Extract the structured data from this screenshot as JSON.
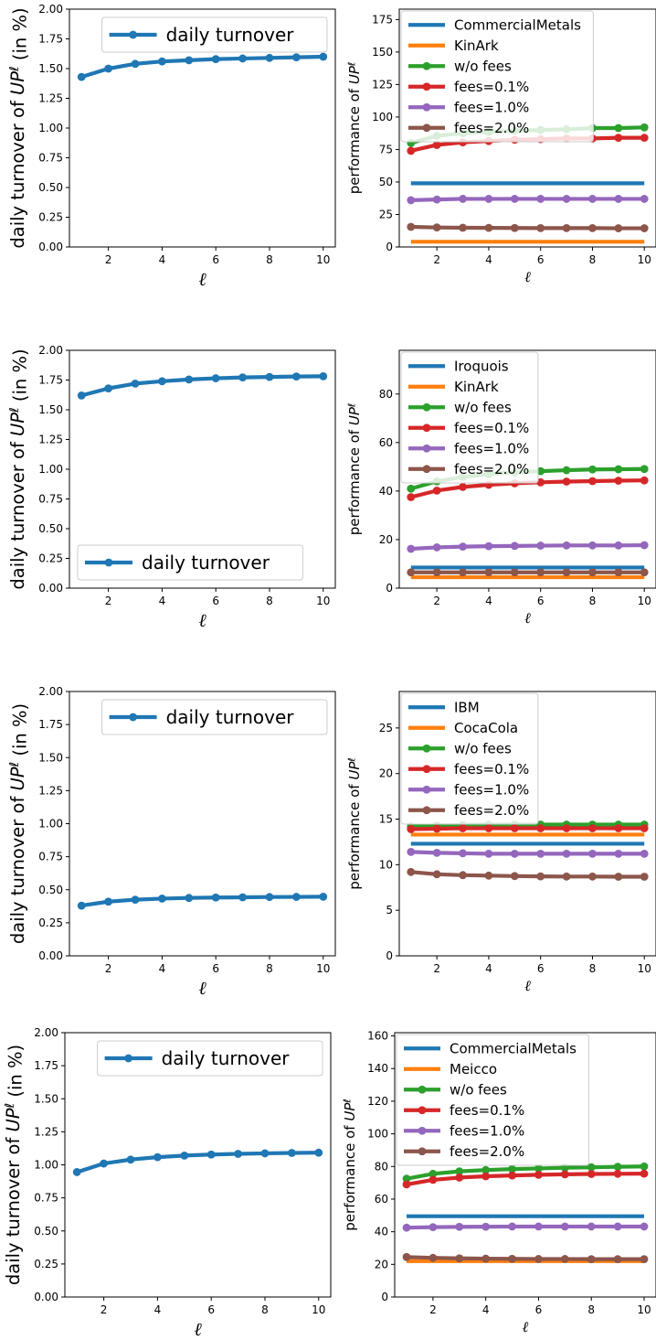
{
  "chart_data": [
    {
      "id": "row1-left",
      "type": "line",
      "ylabel_pre": "daily turnover of ",
      "ylabel_up": "UP",
      "ylabel_sup": "ℓ",
      "ylabel_post": " (in %)",
      "xlabel": "ℓ",
      "x": [
        1,
        2,
        3,
        4,
        5,
        6,
        7,
        8,
        9,
        10
      ],
      "xticks": [
        2,
        4,
        6,
        8,
        10
      ],
      "xticklabels": [
        "2",
        "4",
        "6",
        "8",
        "10"
      ],
      "ylim": [
        0,
        2.0
      ],
      "yticks": [
        0,
        0.25,
        0.5,
        0.75,
        1.0,
        1.25,
        1.5,
        1.75,
        2.0
      ],
      "yticklabels": [
        "0.00",
        "0.25",
        "0.50",
        "0.75",
        "1.00",
        "1.25",
        "1.50",
        "1.75",
        "2.00"
      ],
      "legend_position": "top-right",
      "series": [
        {
          "name": "daily turnover",
          "color": "#1f77b4",
          "marker": true,
          "values": [
            1.43,
            1.5,
            1.54,
            1.56,
            1.57,
            1.58,
            1.585,
            1.59,
            1.595,
            1.6
          ]
        }
      ]
    },
    {
      "id": "row1-right",
      "type": "line",
      "ylabel_pre": "performance of ",
      "ylabel_up": "UP",
      "ylabel_sup": "ℓ",
      "ylabel_post": "",
      "xlabel": "ℓ",
      "x": [
        1,
        2,
        3,
        4,
        5,
        6,
        7,
        8,
        9,
        10
      ],
      "xticks": [
        2,
        4,
        6,
        8,
        10
      ],
      "xticklabels": [
        "2",
        "4",
        "6",
        "8",
        "10"
      ],
      "ylim": [
        0,
        183
      ],
      "yticks": [
        0,
        25,
        50,
        75,
        100,
        125,
        150,
        175
      ],
      "yticklabels": [
        "0",
        "25",
        "50",
        "75",
        "100",
        "125",
        "150",
        "175"
      ],
      "legend_position": "top-left",
      "series": [
        {
          "name": "CommercialMetals",
          "color": "#1f77b4",
          "marker": false,
          "values": [
            49,
            49,
            49,
            49,
            49,
            49,
            49,
            49,
            49,
            49
          ]
        },
        {
          "name": "KinArk",
          "color": "#ff7f0e",
          "marker": false,
          "values": [
            4,
            4,
            4,
            4,
            4,
            4,
            4,
            4,
            4,
            4
          ]
        },
        {
          "name": "w/o fees",
          "color": "#2ca02c",
          "marker": true,
          "values": [
            80,
            85.5,
            87.5,
            88.5,
            89.5,
            90,
            90.5,
            91.5,
            91.5,
            92
          ]
        },
        {
          "name": "fees=0.1%",
          "color": "#d62728",
          "marker": true,
          "values": [
            74,
            78.5,
            80.5,
            81.5,
            82.5,
            83,
            83.5,
            83.5,
            84,
            84
          ]
        },
        {
          "name": "fees=1.0%",
          "color": "#9467bd",
          "marker": true,
          "values": [
            36,
            36.5,
            37,
            37,
            37,
            37,
            37,
            37,
            37,
            37
          ]
        },
        {
          "name": "fees=2.0%",
          "color": "#8c564b",
          "marker": true,
          "values": [
            15.5,
            15,
            14.8,
            14.7,
            14.6,
            14.5,
            14.5,
            14.5,
            14.4,
            14.4
          ]
        }
      ]
    },
    {
      "id": "row2-left",
      "type": "line",
      "ylabel_pre": "daily turnover of ",
      "ylabel_up": "UP",
      "ylabel_sup": "ℓ",
      "ylabel_post": " (in %)",
      "xlabel": "ℓ",
      "x": [
        1,
        2,
        3,
        4,
        5,
        6,
        7,
        8,
        9,
        10
      ],
      "xticks": [
        2,
        4,
        6,
        8,
        10
      ],
      "xticklabels": [
        "2",
        "4",
        "6",
        "8",
        "10"
      ],
      "ylim": [
        0,
        2.0
      ],
      "yticks": [
        0,
        0.25,
        0.5,
        0.75,
        1.0,
        1.25,
        1.5,
        1.75,
        2.0
      ],
      "yticklabels": [
        "0.00",
        "0.25",
        "0.50",
        "0.75",
        "1.00",
        "1.25",
        "1.50",
        "1.75",
        "2.00"
      ],
      "legend_position": "bottom-left",
      "series": [
        {
          "name": "daily turnover",
          "color": "#1f77b4",
          "marker": true,
          "values": [
            1.62,
            1.68,
            1.72,
            1.74,
            1.755,
            1.765,
            1.772,
            1.776,
            1.78,
            1.782
          ]
        }
      ]
    },
    {
      "id": "row2-right",
      "type": "line",
      "ylabel_pre": "performance of ",
      "ylabel_up": "UP",
      "ylabel_sup": "ℓ",
      "ylabel_post": "",
      "xlabel": "ℓ",
      "x": [
        1,
        2,
        3,
        4,
        5,
        6,
        7,
        8,
        9,
        10
      ],
      "xticks": [
        2,
        4,
        6,
        8,
        10
      ],
      "xticklabels": [
        "2",
        "4",
        "6",
        "8",
        "10"
      ],
      "ylim": [
        0,
        98
      ],
      "yticks": [
        0,
        20,
        40,
        60,
        80
      ],
      "yticklabels": [
        "0",
        "20",
        "40",
        "60",
        "80"
      ],
      "legend_position": "top-left",
      "series": [
        {
          "name": "Iroquois",
          "color": "#1f77b4",
          "marker": false,
          "values": [
            8.5,
            8.5,
            8.5,
            8.5,
            8.5,
            8.5,
            8.5,
            8.5,
            8.5,
            8.5
          ]
        },
        {
          "name": "KinArk",
          "color": "#ff7f0e",
          "marker": false,
          "values": [
            4.5,
            4.5,
            4.5,
            4.5,
            4.5,
            4.5,
            4.5,
            4.5,
            4.5,
            4.5
          ]
        },
        {
          "name": "w/o fees",
          "color": "#2ca02c",
          "marker": true,
          "values": [
            41,
            44,
            45.8,
            47,
            47.7,
            48.2,
            48.6,
            48.9,
            49,
            49.1
          ]
        },
        {
          "name": "fees=0.1%",
          "color": "#d62728",
          "marker": true,
          "values": [
            37.5,
            40.2,
            41.7,
            42.6,
            43.2,
            43.6,
            43.9,
            44.1,
            44.3,
            44.4
          ]
        },
        {
          "name": "fees=1.0%",
          "color": "#9467bd",
          "marker": true,
          "values": [
            16.2,
            16.8,
            17.1,
            17.3,
            17.4,
            17.5,
            17.6,
            17.6,
            17.6,
            17.7
          ]
        },
        {
          "name": "fees=2.0%",
          "color": "#8c564b",
          "marker": true,
          "values": [
            6.5,
            6.5,
            6.5,
            6.5,
            6.5,
            6.5,
            6.5,
            6.5,
            6.5,
            6.5
          ]
        }
      ]
    },
    {
      "id": "row3-left",
      "type": "line",
      "ylabel_pre": "daily turnover of ",
      "ylabel_up": "UP",
      "ylabel_sup": "ℓ",
      "ylabel_post": " (in %)",
      "xlabel": "ℓ",
      "x": [
        1,
        2,
        3,
        4,
        5,
        6,
        7,
        8,
        9,
        10
      ],
      "xticks": [
        2,
        4,
        6,
        8,
        10
      ],
      "xticklabels": [
        "2",
        "4",
        "6",
        "8",
        "10"
      ],
      "ylim": [
        0,
        2.0
      ],
      "yticks": [
        0,
        0.25,
        0.5,
        0.75,
        1.0,
        1.25,
        1.5,
        1.75,
        2.0
      ],
      "yticklabels": [
        "0.00",
        "0.25",
        "0.50",
        "0.75",
        "1.00",
        "1.25",
        "1.50",
        "1.75",
        "2.00"
      ],
      "legend_position": "top-right",
      "series": [
        {
          "name": "daily turnover",
          "color": "#1f77b4",
          "marker": true,
          "values": [
            0.38,
            0.41,
            0.425,
            0.433,
            0.438,
            0.441,
            0.443,
            0.445,
            0.446,
            0.447
          ]
        }
      ]
    },
    {
      "id": "row3-right",
      "type": "line",
      "ylabel_pre": "performance of ",
      "ylabel_up": "UP",
      "ylabel_sup": "ℓ",
      "ylabel_post": "",
      "xlabel": "ℓ",
      "x": [
        1,
        2,
        3,
        4,
        5,
        6,
        7,
        8,
        9,
        10
      ],
      "xticks": [
        2,
        4,
        6,
        8,
        10
      ],
      "xticklabels": [
        "2",
        "4",
        "6",
        "8",
        "10"
      ],
      "ylim": [
        0,
        29
      ],
      "yticks": [
        0,
        5,
        10,
        15,
        20,
        25
      ],
      "yticklabels": [
        "0",
        "5",
        "10",
        "15",
        "20",
        "25"
      ],
      "legend_position": "top-left",
      "series": [
        {
          "name": "IBM",
          "color": "#1f77b4",
          "marker": false,
          "values": [
            12.3,
            12.3,
            12.3,
            12.3,
            12.3,
            12.3,
            12.3,
            12.3,
            12.3,
            12.3
          ]
        },
        {
          "name": "CocaCola",
          "color": "#ff7f0e",
          "marker": false,
          "values": [
            13.3,
            13.3,
            13.3,
            13.3,
            13.3,
            13.3,
            13.3,
            13.3,
            13.3,
            13.3
          ]
        },
        {
          "name": "w/o fees",
          "color": "#2ca02c",
          "marker": true,
          "values": [
            14.2,
            14.3,
            14.35,
            14.4,
            14.4,
            14.4,
            14.4,
            14.4,
            14.4,
            14.4
          ]
        },
        {
          "name": "fees=0.1%",
          "color": "#d62728",
          "marker": true,
          "values": [
            13.9,
            13.95,
            14.0,
            14.0,
            14.0,
            14.0,
            14.0,
            14.0,
            14.0,
            14.0
          ]
        },
        {
          "name": "fees=1.0%",
          "color": "#9467bd",
          "marker": true,
          "values": [
            11.4,
            11.3,
            11.25,
            11.2,
            11.2,
            11.2,
            11.2,
            11.2,
            11.2,
            11.2
          ]
        },
        {
          "name": "fees=2.0%",
          "color": "#8c564b",
          "marker": true,
          "values": [
            9.2,
            8.95,
            8.85,
            8.8,
            8.75,
            8.72,
            8.7,
            8.7,
            8.68,
            8.68
          ]
        }
      ]
    },
    {
      "id": "row4-left",
      "type": "line",
      "ylabel_pre": "daily turnover of ",
      "ylabel_up": "UP",
      "ylabel_sup": "ℓ",
      "ylabel_post": " (in %)",
      "xlabel": "ℓ",
      "x": [
        1,
        2,
        3,
        4,
        5,
        6,
        7,
        8,
        9,
        10
      ],
      "xticks": [
        2,
        4,
        6,
        8,
        10
      ],
      "xticklabels": [
        "2",
        "4",
        "6",
        "8",
        "10"
      ],
      "ylim": [
        0,
        2.0
      ],
      "yticks": [
        0,
        0.25,
        0.5,
        0.75,
        1.0,
        1.25,
        1.5,
        1.75,
        2.0
      ],
      "yticklabels": [
        "0.00",
        "0.25",
        "0.50",
        "0.75",
        "1.00",
        "1.25",
        "1.50",
        "1.75",
        "2.00"
      ],
      "legend_position": "top-right",
      "series": [
        {
          "name": "daily turnover",
          "color": "#1f77b4",
          "marker": true,
          "values": [
            0.945,
            1.01,
            1.04,
            1.058,
            1.07,
            1.078,
            1.083,
            1.087,
            1.09,
            1.092
          ]
        }
      ]
    },
    {
      "id": "row4-right",
      "type": "line",
      "ylabel_pre": "performance of ",
      "ylabel_up": "UP",
      "ylabel_sup": "ℓ",
      "ylabel_post": "",
      "xlabel": "ℓ",
      "x": [
        1,
        2,
        3,
        4,
        5,
        6,
        7,
        8,
        9,
        10
      ],
      "xticks": [
        2,
        4,
        6,
        8,
        10
      ],
      "xticklabels": [
        "2",
        "4",
        "6",
        "8",
        "10"
      ],
      "ylim": [
        0,
        162
      ],
      "yticks": [
        0,
        20,
        40,
        60,
        80,
        100,
        120,
        140,
        160
      ],
      "yticklabels": [
        "0",
        "20",
        "40",
        "60",
        "80",
        "100",
        "120",
        "140",
        "160"
      ],
      "legend_position": "top-left",
      "series": [
        {
          "name": "CommercialMetals",
          "color": "#1f77b4",
          "marker": false,
          "values": [
            49.5,
            49.5,
            49.5,
            49.5,
            49.5,
            49.5,
            49.5,
            49.5,
            49.5,
            49.5
          ]
        },
        {
          "name": "Meicco",
          "color": "#ff7f0e",
          "marker": false,
          "values": [
            22,
            22,
            22,
            22,
            22,
            22,
            22,
            22,
            22,
            22
          ]
        },
        {
          "name": "w/o fees",
          "color": "#2ca02c",
          "marker": true,
          "values": [
            72.5,
            75.5,
            77,
            77.8,
            78.4,
            78.8,
            79.2,
            79.5,
            79.8,
            80
          ]
        },
        {
          "name": "fees=0.1%",
          "color": "#d62728",
          "marker": true,
          "values": [
            69,
            71.8,
            73.2,
            74,
            74.5,
            74.9,
            75.2,
            75.4,
            75.5,
            75.6
          ]
        },
        {
          "name": "fees=1.0%",
          "color": "#9467bd",
          "marker": true,
          "values": [
            42.5,
            42.8,
            43,
            43.1,
            43.2,
            43.2,
            43.2,
            43.2,
            43.2,
            43.2
          ]
        },
        {
          "name": "fees=2.0%",
          "color": "#8c564b",
          "marker": true,
          "values": [
            24.5,
            24,
            23.7,
            23.5,
            23.4,
            23.3,
            23.3,
            23.2,
            23.2,
            23.2
          ]
        }
      ]
    }
  ]
}
